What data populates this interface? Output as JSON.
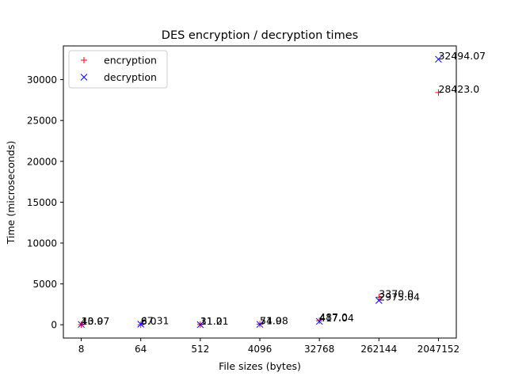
{
  "chart_data": {
    "type": "scatter",
    "title": "DES encryption / decryption times",
    "xlabel": "File sizes (bytes)",
    "ylabel": "Time (microseconds)",
    "x_categories": [
      "8",
      "64",
      "512",
      "4096",
      "32768",
      "262144",
      "2047152"
    ],
    "ylim": [
      -1625,
      34125
    ],
    "yticks": [
      0,
      5000,
      10000,
      15000,
      20000,
      25000,
      30000
    ],
    "grid": false,
    "legend_position": "upper-left",
    "series": [
      {
        "name": "encryption",
        "marker": "+",
        "color": "#ff0000",
        "values": [
          13.0,
          8.0,
          31.0,
          74.0,
          487.0,
          3370.0,
          28423.0
        ],
        "labels": [
          "13.0",
          "8.0",
          "31.0",
          "74.0",
          "487.0",
          "3370.0",
          "28423.0"
        ]
      },
      {
        "name": "decryption",
        "marker": "x",
        "color": "#0000ff",
        "values": [
          40.97,
          67.31,
          11.21,
          51.98,
          417.04,
          2975.04,
          32494.07
        ],
        "labels": [
          "40.97",
          "67.31",
          "11.21",
          "51.98",
          "417.04",
          "2975.04",
          "32494.07"
        ]
      }
    ]
  }
}
